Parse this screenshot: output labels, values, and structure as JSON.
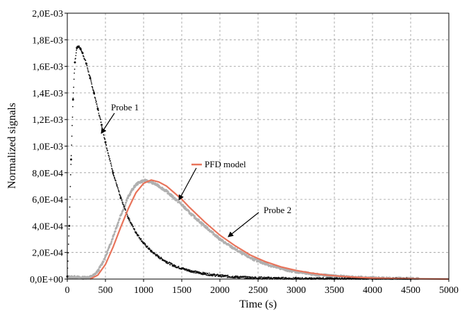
{
  "chart_data": {
    "type": "scatter",
    "title": "",
    "xlabel": "Time (s)",
    "ylabel": "Normalized signals",
    "xlim": [
      0,
      5000
    ],
    "ylim": [
      0,
      0.002
    ],
    "x_ticks": [
      0,
      500,
      1000,
      1500,
      2000,
      2500,
      3000,
      3500,
      4000,
      4500,
      5000
    ],
    "x_tick_labels": [
      "0",
      "500",
      "1000",
      "1500",
      "2000",
      "2500",
      "3000",
      "3500",
      "4000",
      "4500",
      "5000"
    ],
    "y_ticks": [
      0,
      0.0002,
      0.0004,
      0.0006,
      0.0008,
      0.001,
      0.0012,
      0.0014,
      0.0016,
      0.0018,
      0.002
    ],
    "y_tick_labels": [
      "0,0E+00",
      "2,0E-04",
      "4,0E-04",
      "6,0E-04",
      "8,0E-04",
      "1,0E-03",
      "1,2E-03",
      "1,4E-03",
      "1,6E-03",
      "1,8E-03",
      "2,0E-03"
    ],
    "grid": true,
    "grid_style": "dashed",
    "series": [
      {
        "name": "Probe 1",
        "style": "dots",
        "color": "#111111",
        "x": [
          0,
          25,
          50,
          75,
          100,
          125,
          150,
          175,
          200,
          250,
          300,
          350,
          400,
          450,
          500,
          600,
          700,
          800,
          900,
          1000,
          1100,
          1200,
          1300,
          1400,
          1500,
          1600,
          1700,
          1800,
          1900,
          2000,
          2200,
          2400,
          2600,
          2800,
          3000,
          3200,
          3500,
          4000,
          4500
        ],
        "y": [
          2e-05,
          0.0004,
          0.0009,
          0.00135,
          0.00163,
          0.00174,
          0.00175,
          0.00173,
          0.0017,
          0.00162,
          0.00151,
          0.0014,
          0.00128,
          0.00116,
          0.00103,
          0.0008,
          0.00061,
          0.00046,
          0.00035,
          0.00027,
          0.00021,
          0.000165,
          0.00013,
          0.0001,
          8e-05,
          6.4e-05,
          5e-05,
          4e-05,
          3.2e-05,
          2.5e-05,
          1.6e-05,
          1e-05,
          7e-06,
          5e-06,
          3e-06,
          2e-06,
          1e-06,
          5e-07,
          2e-07
        ]
      },
      {
        "name": "Probe 2",
        "style": "dots",
        "color": "#b0b0b0",
        "x": [
          0,
          100,
          200,
          300,
          350,
          400,
          450,
          500,
          550,
          600,
          650,
          700,
          750,
          800,
          850,
          900,
          950,
          1000,
          1050,
          1100,
          1150,
          1200,
          1300,
          1400,
          1500,
          1600,
          1700,
          1800,
          1900,
          2000,
          2100,
          2200,
          2300,
          2400,
          2500,
          2600,
          2700,
          2800,
          2900,
          3000,
          3200,
          3400,
          3600,
          3800,
          4000,
          4200,
          4400,
          4600
        ],
        "y": [
          1.5e-05,
          1.5e-05,
          1e-05,
          1.5e-05,
          3e-05,
          6e-05,
          0.00011,
          0.00017,
          0.00024,
          0.00032,
          0.0004,
          0.00048,
          0.00055,
          0.00062,
          0.00067,
          0.00071,
          0.00073,
          0.00074,
          0.000738,
          0.00073,
          0.000715,
          0.0007,
          0.00066,
          0.00061,
          0.00056,
          0.0005,
          0.00045,
          0.0004,
          0.00035,
          0.0003,
          0.00026,
          0.000225,
          0.00019,
          0.00016,
          0.000135,
          0.000115,
          9.5e-05,
          8e-05,
          6.6e-05,
          5.5e-05,
          3.8e-05,
          2.6e-05,
          1.8e-05,
          1.2e-05,
          8e-06,
          5e-06,
          3e-06,
          2e-06
        ]
      },
      {
        "name": "PFD model",
        "style": "line",
        "color": "#e8735a",
        "x": [
          300,
          400,
          500,
          600,
          700,
          800,
          900,
          1000,
          1100,
          1200,
          1300,
          1400,
          1500,
          1600,
          1800,
          2000,
          2200,
          2400,
          2600,
          2800,
          3000,
          3200,
          3400,
          3600,
          3800,
          4000,
          4300,
          4600,
          5000
        ],
        "y": [
          0.0,
          3e-05,
          0.00011,
          0.00024,
          0.00039,
          0.00053,
          0.00065,
          0.00072,
          0.000745,
          0.00073,
          0.0007,
          0.00065,
          0.0006,
          0.00054,
          0.00043,
          0.00033,
          0.00025,
          0.00018,
          0.00013,
          9.2e-05,
          6.5e-05,
          4.5e-05,
          3e-05,
          2e-05,
          1.3e-05,
          8e-06,
          4e-06,
          2e-06,
          0.0
        ]
      }
    ],
    "annotations": [
      {
        "text": "Probe 1",
        "target_series": "Probe 1"
      },
      {
        "text": "PFD model",
        "target_series": "PFD model"
      },
      {
        "text": "Probe 2",
        "target_series": "Probe 2"
      }
    ]
  }
}
